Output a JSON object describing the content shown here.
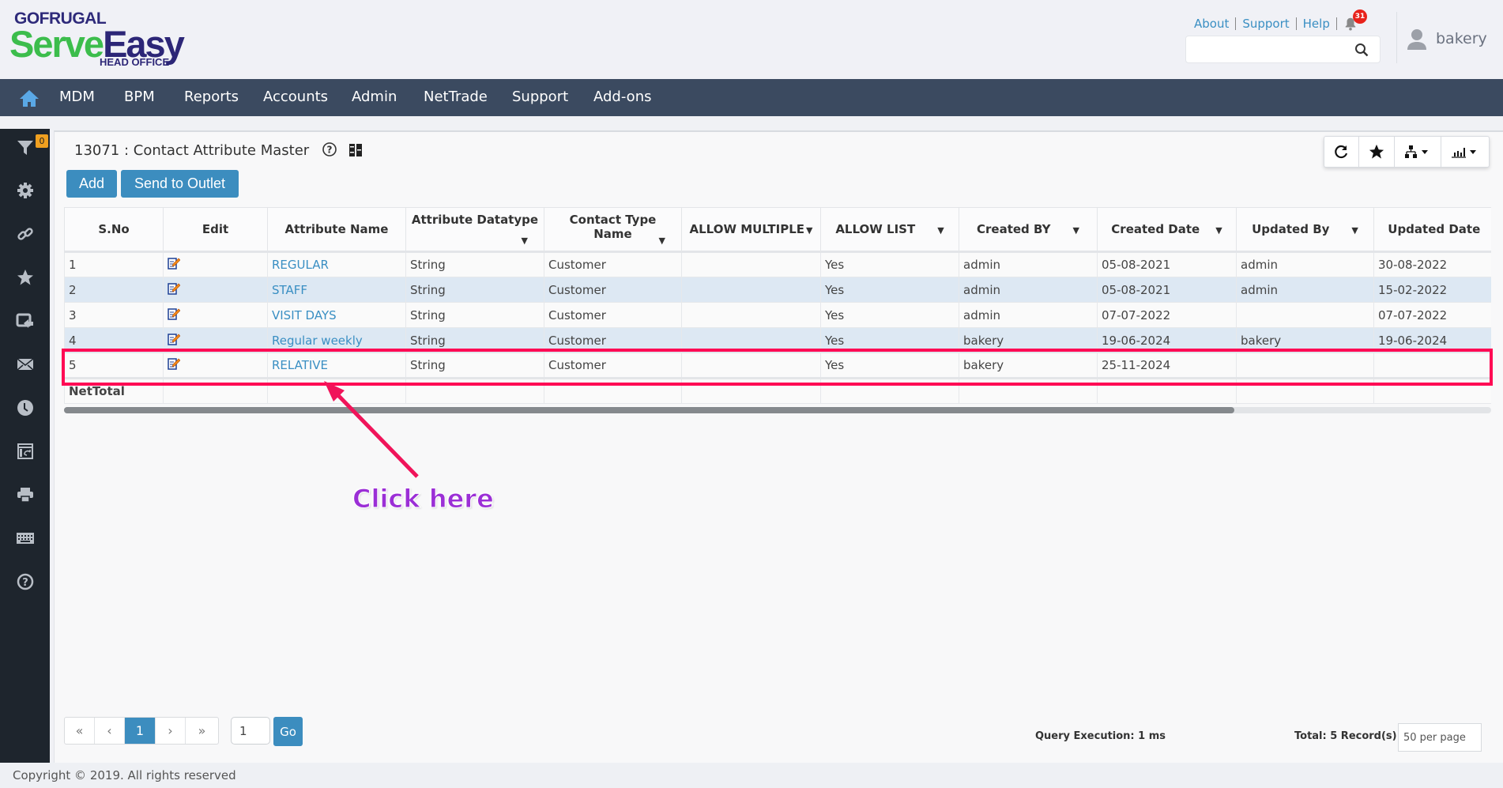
{
  "header": {
    "logo": {
      "brand": "GOFRUGAL",
      "product_part1": "Serve",
      "product_part2": "Easy",
      "edition": "HEAD OFFICE"
    },
    "links": [
      "About",
      "Support",
      "Help"
    ],
    "notification_count": "31",
    "search_placeholder": "",
    "user": "bakery"
  },
  "nav": {
    "items": [
      "MDM",
      "BPM",
      "Reports",
      "Accounts",
      "Admin",
      "NetTrade",
      "Support",
      "Add-ons"
    ]
  },
  "sidebar": {
    "filter_count": "0",
    "icons": [
      "filter-icon",
      "gear-icon",
      "link-icon",
      "star-icon",
      "share-screen-icon",
      "mail-icon",
      "clock-icon",
      "window-swap-icon",
      "printer-icon",
      "keyboard-icon",
      "help-icon"
    ]
  },
  "page": {
    "title": "13071 : Contact Attribute Master",
    "add_label": "Add",
    "send_label": "Send to Outlet"
  },
  "table": {
    "columns": [
      "S.No",
      "Edit",
      "Attribute Name",
      "Attribute Datatype",
      "Contact Type Name",
      "ALLOW MULTIPLE",
      "ALLOW LIST",
      "Created BY",
      "Created Date",
      "Updated By",
      "Updated Date"
    ],
    "rows": [
      {
        "sno": "1",
        "name": "REGULAR",
        "datatype": "String",
        "contact_type": "Customer",
        "allow_multiple": "",
        "allow_list": "Yes",
        "created_by": "admin",
        "created_date": "05-08-2021",
        "updated_by": "admin",
        "updated_date": "30-08-2022"
      },
      {
        "sno": "2",
        "name": "STAFF",
        "datatype": "String",
        "contact_type": "Customer",
        "allow_multiple": "",
        "allow_list": "Yes",
        "created_by": "admin",
        "created_date": "05-08-2021",
        "updated_by": "admin",
        "updated_date": "15-02-2022"
      },
      {
        "sno": "3",
        "name": "VISIT DAYS",
        "datatype": "String",
        "contact_type": "Customer",
        "allow_multiple": "",
        "allow_list": "Yes",
        "created_by": "admin",
        "created_date": "07-07-2022",
        "updated_by": "",
        "updated_date": "07-07-2022"
      },
      {
        "sno": "4",
        "name": "Regular weekly",
        "datatype": "String",
        "contact_type": "Customer",
        "allow_multiple": "",
        "allow_list": "Yes",
        "created_by": "bakery",
        "created_date": "19-06-2024",
        "updated_by": "bakery",
        "updated_date": "19-06-2024"
      },
      {
        "sno": "5",
        "name": "RELATIVE",
        "datatype": "String",
        "contact_type": "Customer",
        "allow_multiple": "",
        "allow_list": "Yes",
        "created_by": "bakery",
        "created_date": "25-11-2024",
        "updated_by": "",
        "updated_date": ""
      }
    ],
    "total_label": "NetTotal",
    "scroll_fraction": 0.82
  },
  "annotation": {
    "text": "Click here",
    "color": "#ff0a54",
    "text_color": "#9b2fd6"
  },
  "pagination": {
    "first": "«",
    "prev": "‹",
    "current": "1",
    "next": "›",
    "last": "»",
    "goto_value": "1",
    "go_label": "Go"
  },
  "status": {
    "query": "Query Execution: 1 ms",
    "total": "Total: 5 Record(s)",
    "per_page": "50 per page"
  },
  "footer": {
    "copyright": "Copyright © 2019. All rights reserved"
  },
  "colors": {
    "nav": "#3b4a60",
    "sidebar": "#1e252d",
    "accent": "#3c8dbf",
    "row_alt": "#dde8f3"
  }
}
